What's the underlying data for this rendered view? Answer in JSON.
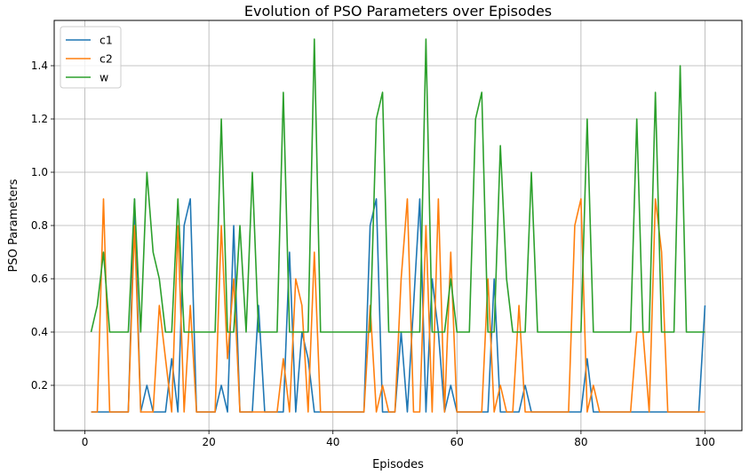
{
  "chart_data": {
    "type": "line",
    "title": "Evolution of PSO Parameters over Episodes",
    "xlabel": "Episodes",
    "ylabel": "PSO Parameters",
    "xlim": [
      -4.95,
      105.95
    ],
    "ylim": [
      0.03,
      1.57
    ],
    "xticks": [
      0,
      20,
      40,
      60,
      80,
      100
    ],
    "xtick_labels": [
      "0",
      "20",
      "40",
      "60",
      "80",
      "100"
    ],
    "yticks": [
      0.2,
      0.4,
      0.6,
      0.8,
      1.0,
      1.2,
      1.4
    ],
    "ytick_labels": [
      "0.2",
      "0.4",
      "0.6",
      "0.8",
      "1.0",
      "1.2",
      "1.4"
    ],
    "grid": true,
    "legend_position": "upper-left",
    "x": [
      1,
      2,
      3,
      4,
      5,
      6,
      7,
      8,
      9,
      10,
      11,
      12,
      13,
      14,
      15,
      16,
      17,
      18,
      19,
      20,
      21,
      22,
      23,
      24,
      25,
      26,
      27,
      28,
      29,
      30,
      31,
      32,
      33,
      34,
      35,
      36,
      37,
      38,
      39,
      40,
      41,
      42,
      43,
      44,
      45,
      46,
      47,
      48,
      49,
      50,
      51,
      52,
      53,
      54,
      55,
      56,
      57,
      58,
      59,
      60,
      61,
      62,
      63,
      64,
      65,
      66,
      67,
      68,
      69,
      70,
      71,
      72,
      73,
      74,
      75,
      76,
      77,
      78,
      79,
      80,
      81,
      82,
      83,
      84,
      85,
      86,
      87,
      88,
      89,
      90,
      91,
      92,
      93,
      94,
      95,
      96,
      97,
      98,
      99,
      100
    ],
    "series": [
      {
        "name": "c1",
        "color": "#1f77b4",
        "values": [
          0.1,
          0.1,
          0.1,
          0.1,
          0.1,
          0.1,
          0.1,
          0.9,
          0.1,
          0.2,
          0.1,
          0.1,
          0.1,
          0.3,
          0.1,
          0.8,
          0.9,
          0.1,
          0.1,
          0.1,
          0.1,
          0.2,
          0.1,
          0.8,
          0.1,
          0.1,
          0.1,
          0.5,
          0.1,
          0.1,
          0.1,
          0.1,
          0.7,
          0.1,
          0.4,
          0.3,
          0.1,
          0.1,
          0.1,
          0.1,
          0.1,
          0.1,
          0.1,
          0.1,
          0.1,
          0.8,
          0.9,
          0.1,
          0.1,
          0.1,
          0.4,
          0.1,
          0.5,
          0.9,
          0.1,
          0.6,
          0.4,
          0.1,
          0.2,
          0.1,
          0.1,
          0.1,
          0.1,
          0.1,
          0.1,
          0.6,
          0.1,
          0.1,
          0.1,
          0.1,
          0.2,
          0.1,
          0.1,
          0.1,
          0.1,
          0.1,
          0.1,
          0.1,
          0.1,
          0.1,
          0.3,
          0.1,
          0.1,
          0.1,
          0.1,
          0.1,
          0.1,
          0.1,
          0.1,
          0.1,
          0.1,
          0.1,
          0.1,
          0.1,
          0.1,
          0.1,
          0.1,
          0.1,
          0.1,
          0.5
        ]
      },
      {
        "name": "c2",
        "color": "#ff7f0e",
        "values": [
          0.1,
          0.1,
          0.9,
          0.1,
          0.1,
          0.1,
          0.1,
          0.8,
          0.1,
          0.1,
          0.1,
          0.5,
          0.3,
          0.1,
          0.8,
          0.1,
          0.5,
          0.1,
          0.1,
          0.1,
          0.1,
          0.8,
          0.3,
          0.6,
          0.1,
          0.1,
          0.1,
          0.1,
          0.1,
          0.1,
          0.1,
          0.3,
          0.1,
          0.6,
          0.5,
          0.1,
          0.7,
          0.1,
          0.1,
          0.1,
          0.1,
          0.1,
          0.1,
          0.1,
          0.1,
          0.5,
          0.1,
          0.2,
          0.1,
          0.1,
          0.6,
          0.9,
          0.1,
          0.1,
          0.8,
          0.1,
          0.9,
          0.1,
          0.7,
          0.1,
          0.1,
          0.1,
          0.1,
          0.1,
          0.6,
          0.1,
          0.2,
          0.1,
          0.1,
          0.5,
          0.1,
          0.1,
          0.1,
          0.1,
          0.1,
          0.1,
          0.1,
          0.1,
          0.8,
          0.9,
          0.1,
          0.2,
          0.1,
          0.1,
          0.1,
          0.1,
          0.1,
          0.1,
          0.4,
          0.4,
          0.1,
          0.9,
          0.7,
          0.1,
          0.1,
          0.1,
          0.1,
          0.1,
          0.1,
          0.1
        ]
      },
      {
        "name": "w",
        "color": "#2ca02c",
        "values": [
          0.4,
          0.5,
          0.7,
          0.4,
          0.4,
          0.4,
          0.4,
          0.9,
          0.4,
          1.0,
          0.7,
          0.6,
          0.4,
          0.4,
          0.9,
          0.4,
          0.4,
          0.4,
          0.4,
          0.4,
          0.4,
          1.2,
          0.4,
          0.4,
          0.8,
          0.4,
          1.0,
          0.4,
          0.4,
          0.4,
          0.4,
          1.3,
          0.4,
          0.4,
          0.4,
          0.4,
          1.5,
          0.4,
          0.4,
          0.4,
          0.4,
          0.4,
          0.4,
          0.4,
          0.4,
          0.4,
          1.2,
          1.3,
          0.4,
          0.4,
          0.4,
          0.4,
          0.4,
          0.4,
          1.5,
          0.4,
          0.4,
          0.4,
          0.6,
          0.4,
          0.4,
          0.4,
          1.2,
          1.3,
          0.4,
          0.4,
          1.1,
          0.6,
          0.4,
          0.4,
          0.4,
          1.0,
          0.4,
          0.4,
          0.4,
          0.4,
          0.4,
          0.4,
          0.4,
          0.4,
          1.2,
          0.4,
          0.4,
          0.4,
          0.4,
          0.4,
          0.4,
          0.4,
          1.2,
          0.4,
          0.4,
          1.3,
          0.4,
          0.4,
          0.4,
          1.4,
          0.4,
          0.4,
          0.4,
          0.4
        ]
      }
    ]
  }
}
